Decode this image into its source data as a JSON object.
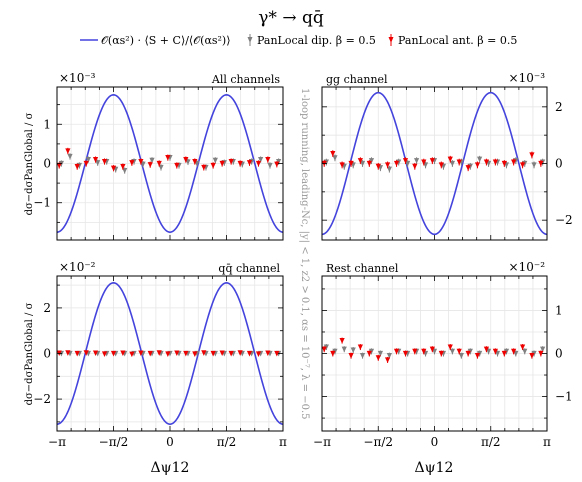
{
  "figure": {
    "title": "γ* → qq̄",
    "legend": [
      {
        "label": "𝒪(αs²) · ⟨S + C⟩/⟨𝒪(αs²)⟩",
        "color": "#4444dd",
        "kind": "line"
      },
      {
        "label": "PanLocal dip. β = 0.5",
        "color": "#808080",
        "kind": "errorbar"
      },
      {
        "label": "PanLocal ant. β = 0.5",
        "color": "#ee0000",
        "kind": "errorbar"
      }
    ],
    "ylabel": "dσ−dσPanGlobal / σ",
    "xlabel": "Δψ12",
    "xtick_labels": [
      "−π",
      "−π/2",
      "0",
      "π/2",
      "π"
    ],
    "side_note": "1-loop running, leading-Nc, |y| < 1, z2 > 0.1, αs = 10⁻⁷, λ = −0.5"
  },
  "chart_data": [
    {
      "type": "line",
      "panel_label": "All channels",
      "exponent_label": "×10⁻³",
      "xlim": [
        -3.14159,
        3.14159
      ],
      "ylim": [
        -1.95,
        1.95
      ],
      "ytick_values": [
        -1,
        0,
        1
      ],
      "ytick_labels": [
        "−1",
        "0",
        "1"
      ],
      "ytick_side": "left",
      "series": [
        {
          "kind": "curve",
          "formula": "-A*cos(2x)",
          "amplitude": 1.75
        },
        {
          "kind": "points",
          "x": [
            -3.02,
            -2.78,
            -2.52,
            -2.27,
            -2.01,
            -1.76,
            -1.51,
            -1.26,
            -1.0,
            -0.75,
            -0.5,
            -0.25,
            0.0,
            0.25,
            0.5,
            0.75,
            1.0,
            1.26,
            1.51,
            1.76,
            2.01,
            2.27,
            2.52,
            2.78,
            3.02
          ],
          "y": [
            0.0,
            0.18,
            -0.05,
            0.1,
            0.02,
            0.05,
            -0.15,
            -0.18,
            0.05,
            -0.02,
            0.08,
            -0.1,
            0.15,
            -0.05,
            0.04,
            0.0,
            -0.1,
            0.08,
            0.02,
            0.05,
            -0.02,
            0.05,
            0.1,
            -0.05,
            0.05
          ],
          "err": [
            0.08,
            0.08,
            0.08,
            0.08,
            0.08,
            0.08,
            0.08,
            0.08,
            0.08,
            0.08,
            0.08,
            0.08,
            0.08,
            0.08,
            0.08,
            0.08,
            0.08,
            0.08,
            0.08,
            0.08,
            0.08,
            0.08,
            0.08,
            0.08,
            0.08
          ]
        },
        {
          "kind": "points",
          "x": [
            -3.08,
            -2.84,
            -2.58,
            -2.33,
            -2.07,
            -1.82,
            -1.57,
            -1.31,
            -1.06,
            -0.81,
            -0.55,
            -0.3,
            -0.06,
            0.19,
            0.44,
            0.69,
            0.94,
            1.2,
            1.45,
            1.7,
            1.95,
            2.21,
            2.46,
            2.72,
            2.97
          ],
          "y": [
            -0.05,
            0.32,
            -0.08,
            0.0,
            0.1,
            0.05,
            -0.12,
            -0.08,
            0.02,
            0.05,
            -0.03,
            0.0,
            0.15,
            -0.05,
            0.1,
            0.05,
            -0.1,
            -0.05,
            0.0,
            0.05,
            0.0,
            0.02,
            0.0,
            0.1,
            -0.02
          ],
          "err": [
            0.08,
            0.08,
            0.08,
            0.08,
            0.08,
            0.08,
            0.08,
            0.08,
            0.08,
            0.08,
            0.08,
            0.08,
            0.08,
            0.08,
            0.08,
            0.08,
            0.08,
            0.08,
            0.08,
            0.08,
            0.08,
            0.08,
            0.08,
            0.08,
            0.08
          ]
        }
      ]
    },
    {
      "type": "line",
      "panel_label": "gg channel",
      "exponent_label": "×10⁻³",
      "xlim": [
        -3.14159,
        3.14159
      ],
      "ylim": [
        -2.7,
        2.7
      ],
      "ytick_values": [
        -2,
        0,
        2
      ],
      "ytick_labels": [
        "−2",
        "0",
        "2"
      ],
      "ytick_side": "right",
      "series": [
        {
          "kind": "curve",
          "formula": "-A*cos(2x)",
          "amplitude": 2.5
        },
        {
          "kind": "points",
          "x": [
            -3.02,
            -2.78,
            -2.52,
            -2.27,
            -2.01,
            -1.76,
            -1.51,
            -1.26,
            -1.0,
            -0.75,
            -0.5,
            -0.25,
            0.0,
            0.25,
            0.5,
            0.75,
            1.0,
            1.26,
            1.51,
            1.76,
            2.01,
            2.27,
            2.52,
            2.78,
            3.02
          ],
          "y": [
            0.05,
            0.2,
            -0.1,
            -0.05,
            0.0,
            0.1,
            -0.15,
            -0.2,
            0.05,
            0.0,
            0.1,
            -0.05,
            0.1,
            -0.1,
            0.0,
            0.05,
            -0.1,
            0.15,
            0.0,
            0.05,
            -0.05,
            0.1,
            0.0,
            -0.05,
            0.05
          ],
          "err": [
            0.12,
            0.12,
            0.12,
            0.12,
            0.12,
            0.12,
            0.12,
            0.12,
            0.12,
            0.12,
            0.12,
            0.12,
            0.12,
            0.12,
            0.12,
            0.12,
            0.12,
            0.12,
            0.12,
            0.12,
            0.12,
            0.12,
            0.12,
            0.12,
            0.12
          ]
        },
        {
          "kind": "points",
          "x": [
            -3.08,
            -2.84,
            -2.58,
            -2.33,
            -2.07,
            -1.82,
            -1.57,
            -1.31,
            -1.06,
            -0.81,
            -0.55,
            -0.3,
            -0.06,
            0.19,
            0.44,
            0.69,
            0.94,
            1.2,
            1.45,
            1.7,
            1.95,
            2.21,
            2.46,
            2.72,
            2.97
          ],
          "y": [
            0.0,
            0.35,
            -0.05,
            0.0,
            0.1,
            0.0,
            -0.1,
            -0.05,
            0.0,
            0.1,
            -0.1,
            0.05,
            0.1,
            -0.05,
            0.15,
            0.05,
            -0.15,
            -0.05,
            0.05,
            0.05,
            0.0,
            0.05,
            -0.05,
            0.3,
            0.0
          ],
          "err": [
            0.12,
            0.12,
            0.12,
            0.12,
            0.12,
            0.12,
            0.12,
            0.12,
            0.12,
            0.12,
            0.12,
            0.12,
            0.12,
            0.12,
            0.12,
            0.12,
            0.12,
            0.12,
            0.12,
            0.12,
            0.12,
            0.12,
            0.12,
            0.12,
            0.12
          ]
        }
      ]
    },
    {
      "type": "line",
      "panel_label": "qq̄ channel",
      "exponent_label": "×10⁻²",
      "xlim": [
        -3.14159,
        3.14159
      ],
      "ylim": [
        -3.4,
        3.4
      ],
      "ytick_values": [
        -2,
        0,
        2
      ],
      "ytick_labels": [
        "−2",
        "0",
        "2"
      ],
      "ytick_side": "left",
      "series": [
        {
          "kind": "curve",
          "formula": "-A*cos(2x)",
          "amplitude": 3.1
        },
        {
          "kind": "points",
          "x": [
            -3.02,
            -2.78,
            -2.52,
            -2.27,
            -2.01,
            -1.76,
            -1.51,
            -1.26,
            -1.0,
            -0.75,
            -0.5,
            -0.25,
            0.0,
            0.25,
            0.5,
            0.75,
            1.0,
            1.26,
            1.51,
            1.76,
            2.01,
            2.27,
            2.52,
            2.78,
            3.02
          ],
          "y": [
            0,
            0,
            0,
            0,
            0,
            0,
            0,
            0,
            0,
            0,
            0,
            0,
            0,
            0,
            0,
            0,
            0,
            0,
            0,
            0,
            0,
            0,
            0,
            0,
            0
          ],
          "err": [
            0.05,
            0.05,
            0.05,
            0.05,
            0.05,
            0.05,
            0.05,
            0.05,
            0.05,
            0.05,
            0.05,
            0.05,
            0.05,
            0.05,
            0.05,
            0.05,
            0.05,
            0.05,
            0.05,
            0.05,
            0.05,
            0.05,
            0.05,
            0.05,
            0.05
          ]
        },
        {
          "kind": "points",
          "x": [
            -3.08,
            -2.84,
            -2.58,
            -2.33,
            -2.07,
            -1.82,
            -1.57,
            -1.31,
            -1.06,
            -0.81,
            -0.55,
            -0.3,
            -0.06,
            0.19,
            0.44,
            0.69,
            0.94,
            1.2,
            1.45,
            1.7,
            1.95,
            2.21,
            2.46,
            2.72,
            2.97
          ],
          "y": [
            0.02,
            0.03,
            0.0,
            0.03,
            0.02,
            -0.02,
            0.0,
            0.02,
            -0.03,
            0.02,
            0.0,
            0.03,
            -0.02,
            0.02,
            0.0,
            -0.02,
            0.03,
            0.0,
            0.02,
            0.0,
            0.03,
            0.0,
            -0.02,
            0.02,
            0.0
          ],
          "err": [
            0.06,
            0.06,
            0.06,
            0.06,
            0.06,
            0.06,
            0.06,
            0.06,
            0.06,
            0.06,
            0.06,
            0.06,
            0.06,
            0.06,
            0.06,
            0.06,
            0.06,
            0.06,
            0.06,
            0.06,
            0.06,
            0.06,
            0.06,
            0.06,
            0.06
          ]
        }
      ]
    },
    {
      "type": "line",
      "panel_label": "Rest channel",
      "exponent_label": "×10⁻²",
      "xlim": [
        -3.14159,
        3.14159
      ],
      "ylim": [
        -1.8,
        1.8
      ],
      "ytick_values": [
        -1,
        0,
        1
      ],
      "ytick_labels": [
        "−1",
        "0",
        "1"
      ],
      "ytick_side": "right",
      "series": [
        {
          "kind": "points",
          "x": [
            -3.02,
            -2.78,
            -2.52,
            -2.27,
            -2.01,
            -1.76,
            -1.51,
            -1.26,
            -1.0,
            -0.75,
            -0.5,
            -0.25,
            0.0,
            0.25,
            0.5,
            0.75,
            1.0,
            1.26,
            1.51,
            1.76,
            2.01,
            2.27,
            2.52,
            2.78,
            3.02
          ],
          "y": [
            0.15,
            0.05,
            0.1,
            0.08,
            -0.05,
            0.05,
            0.0,
            -0.05,
            0.05,
            0.0,
            0.05,
            0.0,
            0.05,
            0.0,
            0.05,
            -0.05,
            0.05,
            0.0,
            0.05,
            0.0,
            0.05,
            0.0,
            0.05,
            0.0,
            0.1
          ],
          "err": [
            0.07,
            0.07,
            0.07,
            0.07,
            0.07,
            0.07,
            0.07,
            0.07,
            0.07,
            0.07,
            0.07,
            0.07,
            0.07,
            0.07,
            0.07,
            0.07,
            0.07,
            0.07,
            0.07,
            0.07,
            0.07,
            0.07,
            0.07,
            0.07,
            0.07
          ]
        },
        {
          "kind": "points",
          "x": [
            -3.08,
            -2.84,
            -2.58,
            -2.33,
            -2.07,
            -1.82,
            -1.57,
            -1.31,
            -1.06,
            -0.81,
            -0.55,
            -0.3,
            -0.06,
            0.19,
            0.44,
            0.69,
            0.94,
            1.2,
            1.45,
            1.7,
            1.95,
            2.21,
            2.46,
            2.72,
            2.97
          ],
          "y": [
            0.1,
            0.0,
            0.3,
            -0.05,
            0.15,
            0.0,
            -0.1,
            -0.15,
            0.05,
            0.0,
            0.05,
            0.05,
            0.1,
            0.0,
            0.15,
            0.05,
            0.0,
            -0.05,
            0.1,
            0.05,
            0.0,
            0.05,
            0.15,
            -0.05,
            0.0
          ],
          "err": [
            0.07,
            0.07,
            0.07,
            0.07,
            0.07,
            0.07,
            0.07,
            0.07,
            0.07,
            0.07,
            0.07,
            0.07,
            0.07,
            0.07,
            0.07,
            0.07,
            0.07,
            0.07,
            0.07,
            0.07,
            0.07,
            0.07,
            0.07,
            0.07,
            0.07
          ]
        }
      ]
    }
  ]
}
